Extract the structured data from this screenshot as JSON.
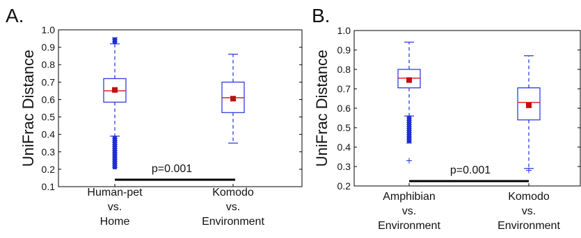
{
  "chart_data": [
    {
      "type": "box",
      "panel_label": "A.",
      "ylabel": "UniFrac Distance",
      "ylim": [
        0.1,
        1.0
      ],
      "yticks": [
        "0.1",
        "0.2",
        "0.3",
        "0.4",
        "0.5",
        "0.6",
        "0.7",
        "0.8",
        "0.9",
        "1.0"
      ],
      "categories": [
        [
          "Human-pet",
          "vs.",
          "Home"
        ],
        [
          "Komodo",
          "vs.",
          "Environment"
        ]
      ],
      "boxes": [
        {
          "whisker_low": 0.39,
          "q1": 0.585,
          "median": 0.65,
          "q3": 0.72,
          "whisker_high": 0.92,
          "mean": 0.655,
          "outliers_low_range": [
            0.2,
            0.39
          ],
          "outliers_high_range": [
            0.92,
            0.955
          ]
        },
        {
          "whisker_low": 0.35,
          "q1": 0.525,
          "median": 0.61,
          "q3": 0.7,
          "whisker_high": 0.86,
          "mean": 0.605,
          "outliers_low_range": [],
          "outliers_high_range": []
        }
      ],
      "annotation": "p=0.001",
      "colors": {
        "box": "#1f2fd6",
        "median": "#e02020",
        "mean": "#c01010",
        "bar": "#000000"
      }
    },
    {
      "type": "box",
      "panel_label": "B.",
      "ylabel": "UniFrac Distance",
      "ylim": [
        0.2,
        1.0
      ],
      "yticks": [
        "0.2",
        "0.3",
        "0.4",
        "0.5",
        "0.6",
        "0.7",
        "0.8",
        "0.9",
        "1.0"
      ],
      "categories": [
        [
          "Amphibian",
          "vs.",
          "Environment"
        ],
        [
          "Komodo",
          "vs.",
          "Environment"
        ]
      ],
      "boxes": [
        {
          "whisker_low": 0.56,
          "q1": 0.705,
          "median": 0.755,
          "q3": 0.8,
          "whisker_high": 0.94,
          "mean": 0.745,
          "outliers_low_range": [
            0.42,
            0.56
          ],
          "outliers_extra": [
            0.33
          ],
          "outliers_high_range": []
        },
        {
          "whisker_low": 0.29,
          "q1": 0.54,
          "median": 0.63,
          "q3": 0.705,
          "whisker_high": 0.87,
          "mean": 0.615,
          "outliers_low_range": [],
          "outliers_extra": [
            0.28
          ],
          "outliers_high_range": []
        }
      ],
      "annotation": "p=0.001",
      "colors": {
        "box": "#1f2fd6",
        "median": "#e02020",
        "mean": "#c01010",
        "bar": "#000000"
      }
    }
  ]
}
